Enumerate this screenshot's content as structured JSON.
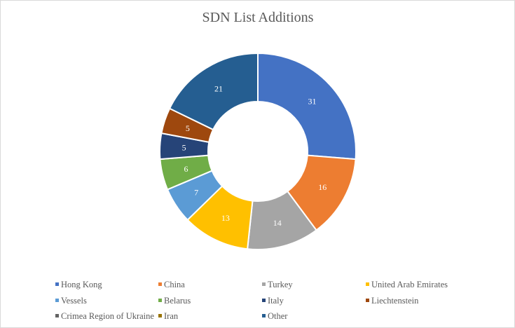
{
  "chart_data": {
    "type": "pie",
    "variant": "donut",
    "title": "SDN List Additions",
    "legend_position": "bottom",
    "slices": [
      {
        "label": "Hong Kong",
        "value": 31,
        "color": "#4472C4"
      },
      {
        "label": "China",
        "value": 16,
        "color": "#ED7D31"
      },
      {
        "label": "Turkey",
        "value": 14,
        "color": "#A5A5A5"
      },
      {
        "label": "United Arab Emirates",
        "value": 13,
        "color": "#FFC000"
      },
      {
        "label": "Vessels",
        "value": 7,
        "color": "#5B9BD5"
      },
      {
        "label": "Belarus",
        "value": 6,
        "color": "#70AD47"
      },
      {
        "label": "Italy",
        "value": 5,
        "color": "#264478"
      },
      {
        "label": "Liechtenstein",
        "value": 5,
        "color": "#9E480E"
      },
      {
        "label": "Crimea Region of Ukraine",
        "value": 0,
        "color": "#636363"
      },
      {
        "label": "Iran",
        "value": 0,
        "color": "#997300"
      },
      {
        "label": "Other",
        "value": 21,
        "color": "#255E91"
      }
    ]
  }
}
